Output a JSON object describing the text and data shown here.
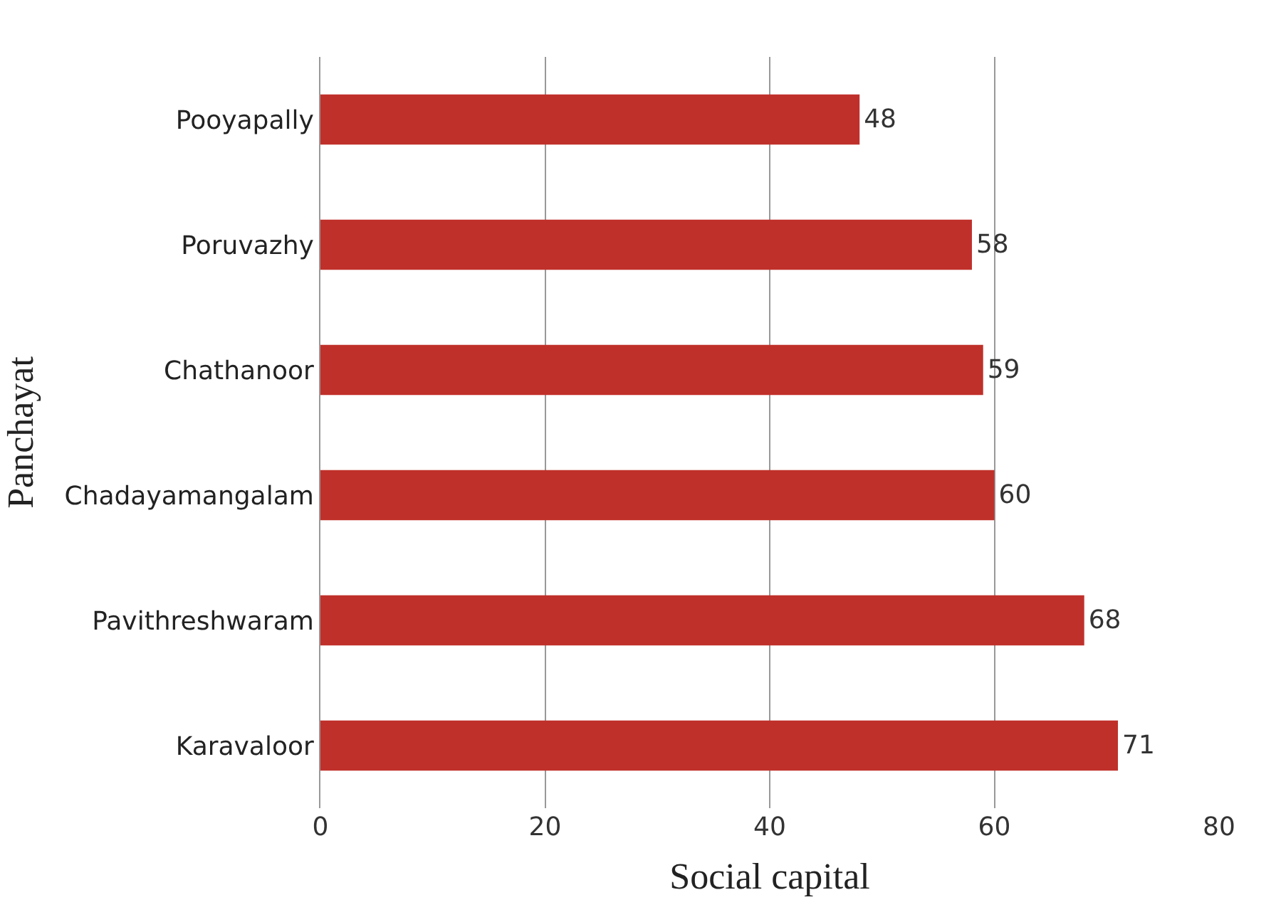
{
  "chart_data": {
    "type": "bar",
    "orientation": "horizontal",
    "xlabel": "Social capital",
    "ylabel": "Panchayat",
    "categories": [
      "Pooyapally",
      "Poruvazhy",
      "Chathanoor",
      "Chadayamangalam",
      "Pavithreshwaram",
      "Karavaloor"
    ],
    "values": [
      48,
      58,
      59,
      60,
      68,
      71
    ],
    "color": "#c0302a",
    "xlim": [
      0,
      80
    ],
    "xticks": [
      0,
      20,
      40,
      60,
      80
    ],
    "grid": "x",
    "data_labels": true,
    "legend": false
  }
}
